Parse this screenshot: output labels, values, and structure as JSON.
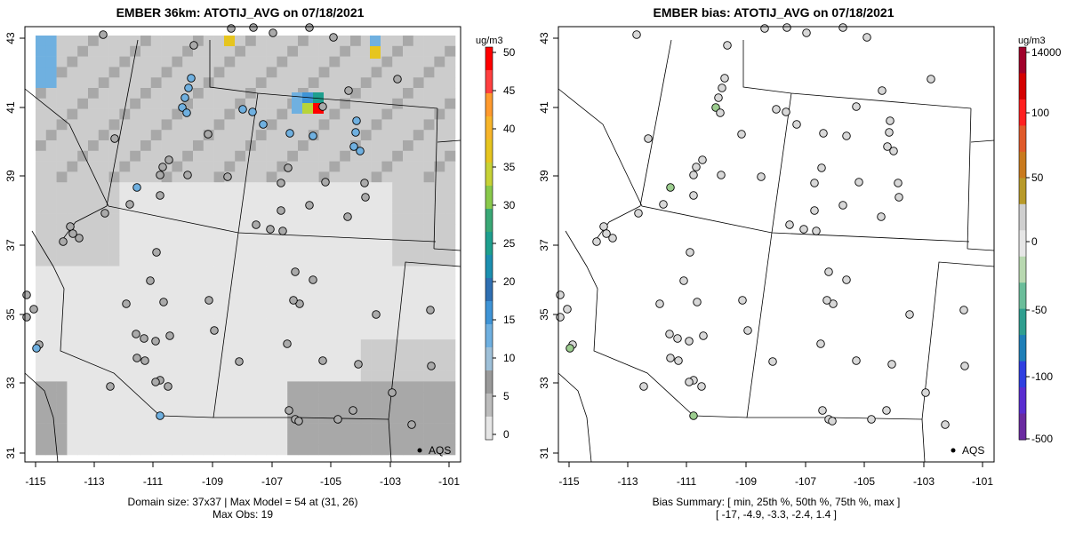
{
  "left": {
    "title": "EMBER 36km: ATOTIJ_AVG on 07/18/2021",
    "footer_line1": "Domain size: 37x37 | Max Model = 54 at (31, 26)",
    "footer_line2": "Max Obs: 19",
    "colorbar_unit": "ug/m3",
    "colorbar_ticks": [
      "50",
      "45",
      "40",
      "35",
      "30",
      "25",
      "20",
      "15",
      "10",
      "5",
      "0"
    ],
    "legend_label": "AQS"
  },
  "right": {
    "title": "EMBER bias: ATOTIJ_AVG on 07/18/2021",
    "footer_line1": "Bias Summary: [ min, 25th %, 50th %, 75th %, max ]",
    "footer_line2": "[ -17,   -4.9,   -3.3,   -2.4,   1.4 ]",
    "colorbar_unit": "ug/m3",
    "colorbar_ticks": [
      "14000",
      "100",
      "50",
      "0",
      "-50",
      "-100",
      "-500"
    ],
    "legend_label": "AQS"
  },
  "x_ticks": [
    "-115",
    "-113",
    "-111",
    "-109",
    "-107",
    "-105",
    "-103",
    "-101"
  ],
  "y_ticks": [
    "43",
    "41",
    "39",
    "37",
    "35",
    "33",
    "31"
  ],
  "colors": {
    "map_light": "#e6e6e6",
    "map_mid": "#cccccc",
    "map_dark": "#a8a8a8",
    "blue_low": "#6fb0e0",
    "blue_mid": "#3f94d6",
    "teal": "#1e9f8e",
    "yellow": "#e6c51f",
    "red": "#ff0000",
    "obs_gray": "#aaaaaa",
    "bias_fill": "#d8d8d8",
    "bias_green": "#9ccd8f"
  }
}
